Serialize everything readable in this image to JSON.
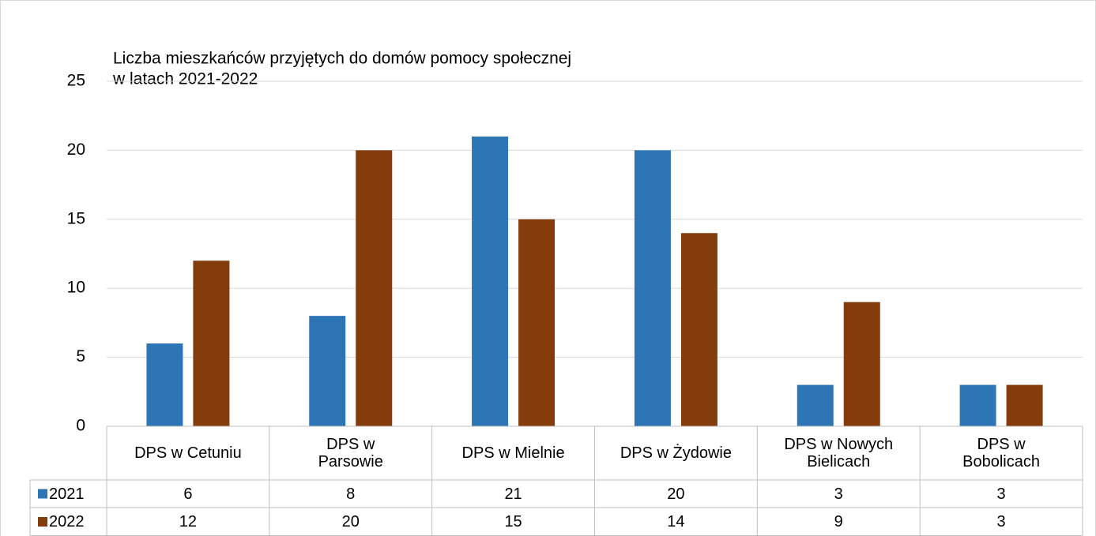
{
  "chart_data": {
    "type": "bar",
    "title": [
      "Liczba mieszkańców przyjętych do domów pomocy społecznej",
      "w latach 2021-2022"
    ],
    "categories": [
      "DPS w Cetuniu",
      "DPS w Parsowie",
      "DPS w Mielnie",
      "DPS w Żydowie",
      "DPS w Nowych Bielicach",
      "DPS w Bobolicach"
    ],
    "series": [
      {
        "name": "2021",
        "color": "#2e75b6",
        "values": [
          6,
          8,
          21,
          20,
          3,
          3
        ]
      },
      {
        "name": "2022",
        "color": "#843c0c",
        "values": [
          12,
          20,
          15,
          14,
          9,
          3
        ]
      }
    ],
    "ylim": [
      0,
      25
    ],
    "yticks": [
      0,
      5,
      10,
      15,
      20,
      25
    ],
    "grid": true,
    "data_table": true
  }
}
